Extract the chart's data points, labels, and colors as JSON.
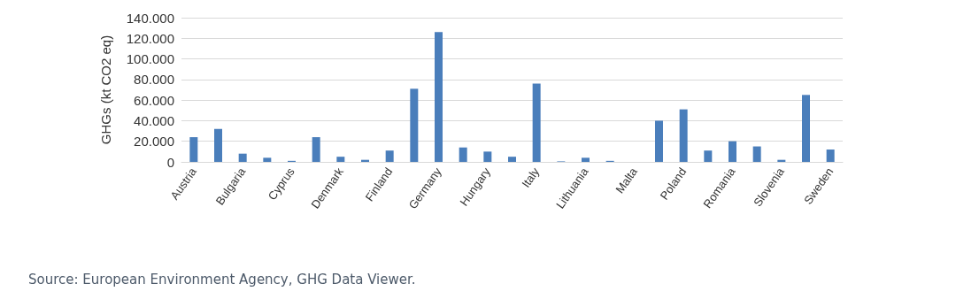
{
  "chart_data": {
    "type": "bar",
    "ylabel": "GHGs (kt CO2 eq)",
    "categories": [
      "Austria",
      null,
      "Bulgaria",
      null,
      "Cyprus",
      null,
      "Denmark",
      null,
      "Finland",
      null,
      "Germany",
      null,
      "Hungary",
      null,
      "Italy",
      null,
      "Lithuania",
      null,
      "Malta",
      null,
      "Poland",
      null,
      "Romania",
      null,
      "Slovenia",
      null,
      "Sweden"
    ],
    "values": [
      24000,
      32000,
      8000,
      4000,
      1000,
      24000,
      5000,
      2000,
      11000,
      71000,
      126000,
      14000,
      10000,
      5000,
      76000,
      500,
      4000,
      1000,
      0,
      40000,
      51000,
      11000,
      20000,
      15000,
      2000,
      65000,
      12000
    ],
    "color": "#4a7ebb",
    "ylim": [
      0,
      140000
    ],
    "yticks": [
      0,
      {
        "value": 20000,
        "label": "20.000"
      },
      {
        "value": 40000,
        "label": "40.000"
      },
      {
        "value": 60000,
        "label": "60.000"
      },
      {
        "value": 80000,
        "label": "80.000"
      },
      {
        "value": 100000,
        "label": "100.000"
      },
      {
        "value": 120000,
        "label": "120.000"
      },
      {
        "value": 140000,
        "label": "140.000"
      }
    ],
    "grid": "y",
    "annotations": [
      "Source: European Environment Agency, GHG Data Viewer."
    ]
  }
}
